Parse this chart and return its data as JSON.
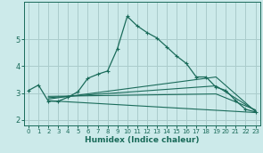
{
  "xlabel": "Humidex (Indice chaleur)",
  "bg_color": "#cceaea",
  "grid_color": "#aacccc",
  "line_color": "#1a6b5a",
  "xlim": [
    -0.5,
    23.5
  ],
  "ylim": [
    1.8,
    6.4
  ],
  "yticks": [
    2,
    3,
    4,
    5
  ],
  "xticks": [
    0,
    1,
    2,
    3,
    4,
    5,
    6,
    7,
    8,
    9,
    10,
    11,
    12,
    13,
    14,
    15,
    16,
    17,
    18,
    19,
    20,
    21,
    22,
    23
  ],
  "lines": [
    {
      "x": [
        0,
        1,
        2,
        3,
        4,
        5,
        6,
        7,
        8,
        9,
        10,
        11,
        12,
        13,
        14,
        15,
        16,
        17,
        18,
        19,
        20,
        21,
        22,
        23
      ],
      "y": [
        3.1,
        3.3,
        2.7,
        2.7,
        2.85,
        3.05,
        3.55,
        3.7,
        3.82,
        4.65,
        5.85,
        5.5,
        5.25,
        5.05,
        4.72,
        4.38,
        4.1,
        3.6,
        3.6,
        3.22,
        3.1,
        2.72,
        2.4,
        2.3
      ],
      "marker": true
    },
    {
      "x": [
        2,
        23
      ],
      "y": [
        2.72,
        2.28
      ],
      "marker": false
    },
    {
      "x": [
        2,
        19,
        23
      ],
      "y": [
        2.78,
        3.6,
        2.32
      ],
      "marker": false
    },
    {
      "x": [
        2,
        19,
        23
      ],
      "y": [
        2.83,
        3.27,
        2.35
      ],
      "marker": false
    },
    {
      "x": [
        2,
        19,
        23
      ],
      "y": [
        2.88,
        2.97,
        2.38
      ],
      "marker": false
    }
  ]
}
